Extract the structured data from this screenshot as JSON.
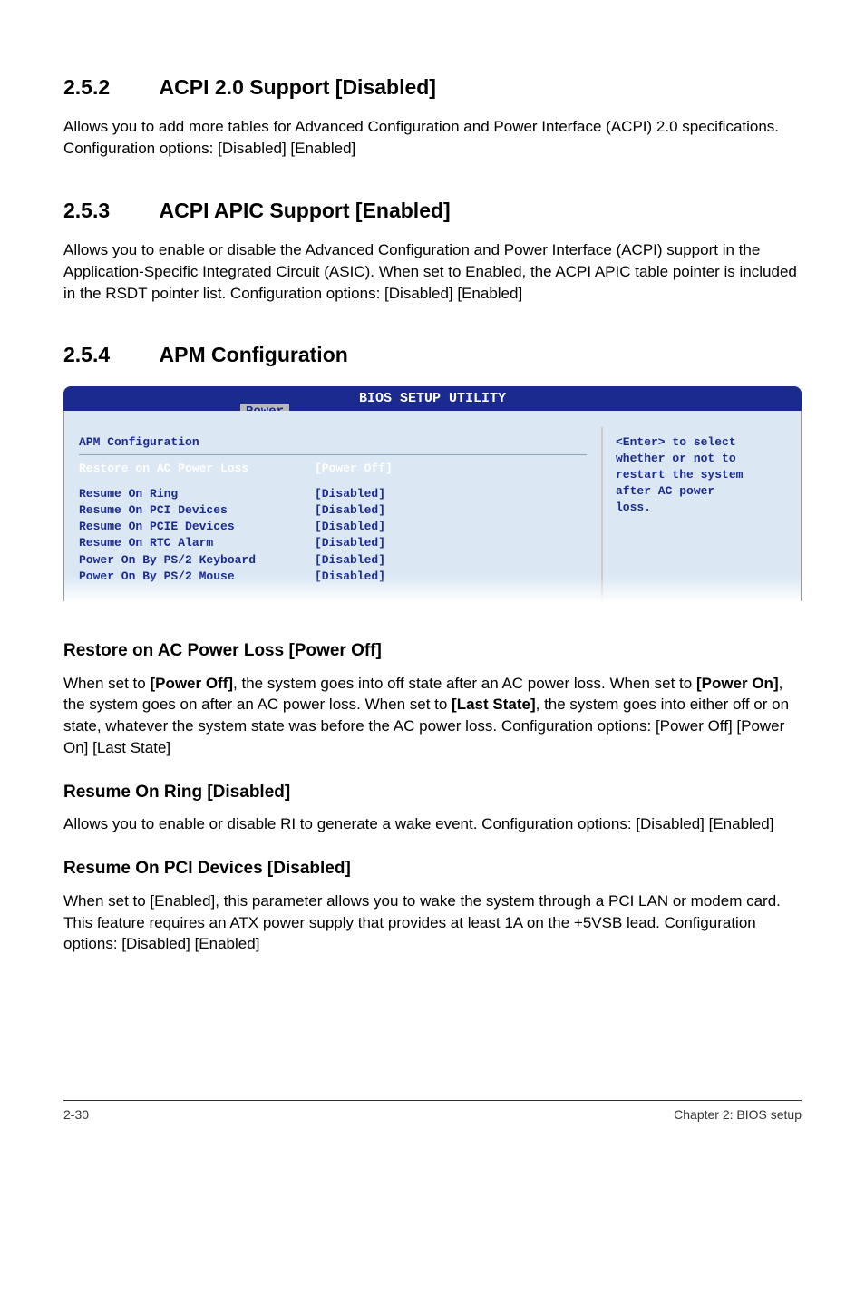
{
  "section_252": {
    "number": "2.5.2",
    "title": "ACPI 2.0 Support [Disabled]",
    "body": "Allows you to add more tables for Advanced Configuration and Power Interface (ACPI) 2.0 specifications. Configuration options: [Disabled] [Enabled]"
  },
  "section_253": {
    "number": "2.5.3",
    "title": "ACPI APIC Support [Enabled]",
    "body": "Allows you to enable or disable the Advanced Configuration and Power Interface (ACPI) support in the Application-Specific Integrated Circuit (ASIC). When set to Enabled, the ACPI APIC table pointer is included in the RSDT pointer list. Configuration options: [Disabled] [Enabled]"
  },
  "section_254": {
    "number": "2.5.4",
    "title": "APM Configuration"
  },
  "bios": {
    "window_title": "BIOS SETUP UTILITY",
    "tab": "Power",
    "panel_title": "APM Configuration",
    "help_text_line1": "<Enter> to select",
    "help_text_line2": "whether or not to",
    "help_text_line3": "restart the system",
    "help_text_line4": "after AC power",
    "help_text_line5": "loss.",
    "rows": [
      {
        "label": "Restore on AC Power Loss",
        "value": "[Power Off]",
        "highlight": true
      },
      {
        "label": "Resume On Ring",
        "value": "[Disabled]",
        "highlight": false
      },
      {
        "label": "Resume On PCI Devices",
        "value": "[Disabled]",
        "highlight": false
      },
      {
        "label": "Resume On PCIE Devices",
        "value": "[Disabled]",
        "highlight": false
      },
      {
        "label": "Resume On RTC Alarm",
        "value": "[Disabled]",
        "highlight": false
      },
      {
        "label": "Power On By PS/2 Keyboard",
        "value": "[Disabled]",
        "highlight": false
      },
      {
        "label": "Power On By PS/2 Mouse",
        "value": "[Disabled]",
        "highlight": false
      }
    ],
    "colors": {
      "title_bg": "#1a2a8f",
      "title_fg": "#ffffff",
      "tab_bg": "#b8b8b8",
      "tab_fg": "#1a2a8f",
      "body_bg": "#dbe8f4",
      "text_fg": "#1a2a8f",
      "highlight_fg": "#ffffff"
    }
  },
  "sub_restore": {
    "title": "Restore on AC Power Loss [Power Off]",
    "body_pre1": "When set to ",
    "b1": "[Power Off]",
    "body_mid1": ", the system goes into off state after an AC power loss. When set to ",
    "b2": "[Power On]",
    "body_mid2": ", the system goes on after an AC power loss. When set to ",
    "b3": "[Last State]",
    "body_post": ", the system goes into either off or on state, whatever the system state was before the AC power loss. Configuration options: [Power Off] [Power On] [Last State]"
  },
  "sub_ring": {
    "title": "Resume On Ring [Disabled]",
    "body": "Allows you to enable or disable RI to generate a wake event. Configuration options: [Disabled] [Enabled]"
  },
  "sub_pci": {
    "title": "Resume On PCI Devices [Disabled]",
    "body": "When set to [Enabled], this parameter allows you to wake the system through a PCI LAN or modem card. This feature requires an ATX power supply that provides at least 1A on the +5VSB lead. Configuration options: [Disabled] [Enabled]"
  },
  "footer": {
    "left": "2-30",
    "right": "Chapter 2: BIOS setup"
  }
}
